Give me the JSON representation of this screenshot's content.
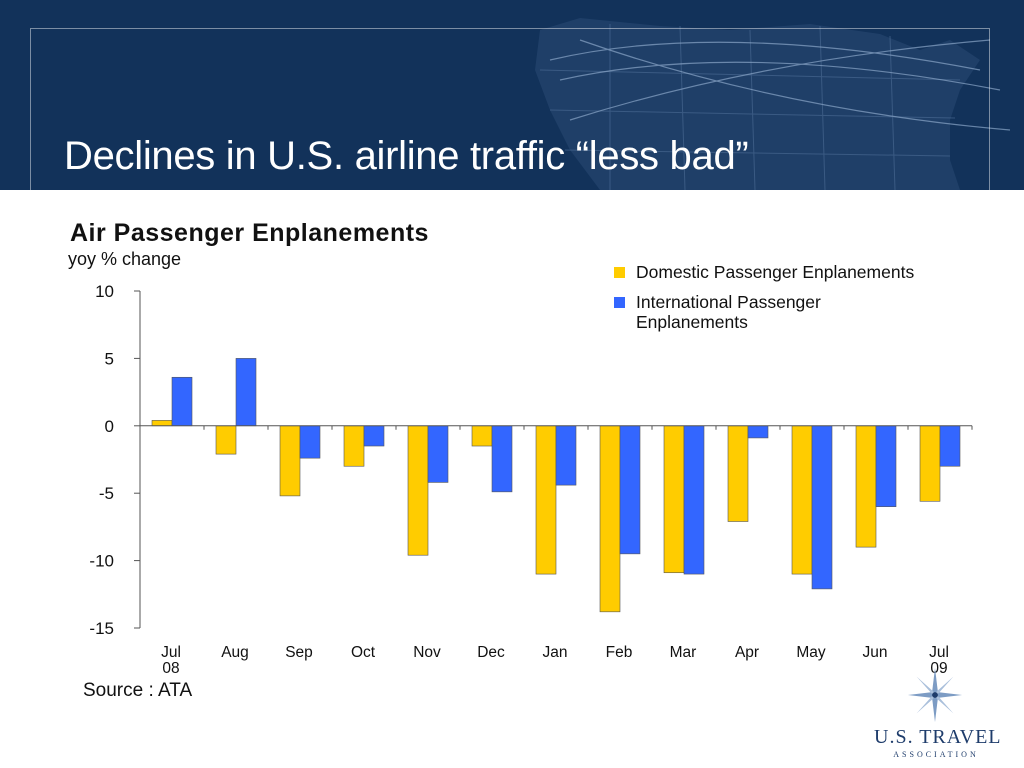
{
  "slide": {
    "title": "Declines in U.S. airline traffic “less bad”",
    "header_color": "#12325a"
  },
  "source_note": "Source : ATA",
  "logo": {
    "name": "U.S. TRAVEL",
    "sub": "ASSOCIATION",
    "icon": "compass-star-icon"
  },
  "chart_data": {
    "type": "bar",
    "title": "Air Passenger Enplanements",
    "subtitle": "yoy % change",
    "categories": [
      {
        "month": "Jul",
        "year": "08"
      },
      {
        "month": "Aug",
        "year": ""
      },
      {
        "month": "Sep",
        "year": ""
      },
      {
        "month": "Oct",
        "year": ""
      },
      {
        "month": "Nov",
        "year": ""
      },
      {
        "month": "Dec",
        "year": ""
      },
      {
        "month": "Jan",
        "year": ""
      },
      {
        "month": "Feb",
        "year": ""
      },
      {
        "month": "Mar",
        "year": ""
      },
      {
        "month": "Apr",
        "year": ""
      },
      {
        "month": "May",
        "year": ""
      },
      {
        "month": "Jun",
        "year": ""
      },
      {
        "month": "Jul",
        "year": "09"
      }
    ],
    "series": [
      {
        "name": "Domestic Passenger Enplanements",
        "color": "#ffcc00",
        "values": [
          0.4,
          -2.1,
          -5.2,
          -3.0,
          -9.6,
          -1.5,
          -11.0,
          -13.8,
          -10.9,
          -7.1,
          -11.0,
          -9.0,
          -5.6
        ]
      },
      {
        "name": "International Passenger Enplanements",
        "color": "#3366ff",
        "values": [
          3.6,
          5.0,
          -2.4,
          -1.5,
          -4.2,
          -4.9,
          -4.4,
          -9.5,
          -11.0,
          -0.9,
          -12.1,
          -6.0,
          -3.0
        ]
      }
    ],
    "yticks": [
      10,
      5,
      0,
      -5,
      -10,
      -15
    ],
    "ylim": [
      -15,
      10
    ],
    "legend_position": "top-right",
    "grid": false
  }
}
